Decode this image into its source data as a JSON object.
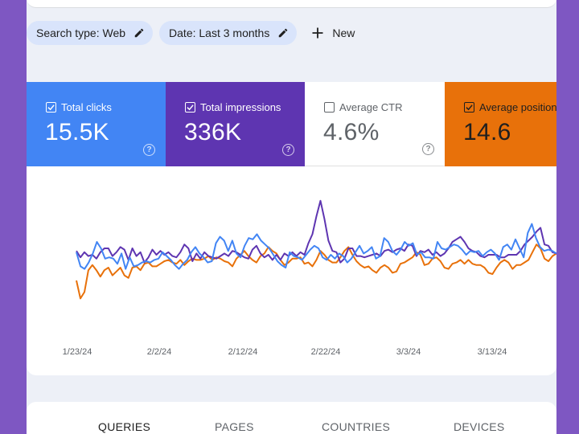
{
  "filters": {
    "search_type": "Search type: Web",
    "date": "Date: Last 3 months",
    "new_label": "New"
  },
  "metrics": [
    {
      "key": "clicks",
      "label": "Total clicks",
      "value": "15.5K",
      "checked": true,
      "color": "#4285f4"
    },
    {
      "key": "impressions",
      "label": "Total impressions",
      "value": "336K",
      "checked": true,
      "color": "#5e35b1"
    },
    {
      "key": "ctr",
      "label": "Average CTR",
      "value": "4.6%",
      "checked": false,
      "color": "#ffffff"
    },
    {
      "key": "position",
      "label": "Average position",
      "value": "14.6",
      "checked": true,
      "color": "#e8710a"
    }
  ],
  "chart_data": {
    "type": "line",
    "x_tick_labels": [
      "1/23/24",
      "2/2/24",
      "2/12/24",
      "2/22/24",
      "3/3/24",
      "3/13/24"
    ],
    "y_range": [
      0,
      100
    ],
    "grid": false,
    "series": [
      {
        "name": "Total clicks",
        "color": "#4285f4",
        "values": [
          52,
          41,
          39,
          44,
          51,
          60,
          55,
          47,
          48,
          47,
          43,
          51,
          39,
          48,
          41,
          42,
          44,
          45,
          44,
          46,
          47,
          52,
          49,
          46,
          42,
          39,
          43,
          46,
          52,
          56,
          51,
          48,
          44,
          45,
          59,
          64,
          61,
          53,
          61,
          51,
          48,
          57,
          63,
          62,
          66,
          61,
          58,
          55,
          50,
          45,
          42,
          40,
          52,
          49,
          48,
          46,
          50,
          54,
          57,
          55,
          48,
          46,
          50,
          47,
          51,
          49,
          44,
          47,
          52,
          57,
          51,
          53,
          56,
          47,
          49,
          63,
          60,
          53,
          50,
          54,
          60,
          57,
          59,
          50,
          52,
          48,
          48,
          47,
          60,
          55,
          54,
          56,
          58,
          57,
          54,
          50,
          53,
          52,
          53,
          49,
          52,
          54,
          51,
          46,
          56,
          58,
          54,
          62,
          55,
          48,
          67,
          74,
          63,
          56,
          53,
          54,
          53,
          51
        ]
      },
      {
        "name": "Total impressions",
        "color": "#5e35b1",
        "values": [
          53,
          48,
          52,
          49,
          50,
          47,
          52,
          55,
          55,
          49,
          52,
          56,
          54,
          46,
          55,
          49,
          52,
          44,
          48,
          54,
          50,
          53,
          50,
          52,
          49,
          48,
          52,
          58,
          55,
          45,
          51,
          47,
          52,
          49,
          48,
          47,
          49,
          51,
          49,
          53,
          52,
          50,
          48,
          47,
          54,
          57,
          51,
          48,
          50,
          46,
          50,
          46,
          51,
          49,
          52,
          49,
          52,
          50,
          59,
          66,
          80,
          92,
          78,
          61,
          53,
          52,
          44,
          47,
          55,
          55,
          49,
          49,
          48,
          49,
          50,
          51,
          49,
          53,
          54,
          52,
          54,
          55,
          53,
          58,
          57,
          49,
          53,
          52,
          54,
          50,
          52,
          49,
          51,
          55,
          60,
          62,
          64,
          60,
          55,
          53,
          52,
          49,
          48,
          50,
          50,
          50,
          48,
          48,
          50,
          50,
          50,
          53,
          58,
          61,
          64,
          68,
          71,
          58,
          57,
          52,
          51
        ]
      },
      {
        "name": "Average position",
        "color": "#e8710a",
        "values": [
          30,
          16,
          21,
          38,
          42,
          38,
          33,
          38,
          40,
          34,
          37,
          40,
          34,
          32,
          40,
          41,
          38,
          43,
          44,
          41,
          41,
          43,
          45,
          46,
          44,
          43,
          46,
          42,
          45,
          47,
          46,
          46,
          47,
          49,
          46,
          48,
          47,
          45,
          44,
          41,
          47,
          50,
          53,
          49,
          46,
          44,
          49,
          51,
          56,
          53,
          51,
          46,
          42,
          44,
          47,
          47,
          48,
          43,
          44,
          41,
          46,
          53,
          50,
          46,
          44,
          44,
          48,
          53,
          56,
          50,
          45,
          42,
          40,
          41,
          38,
          36,
          40,
          42,
          40,
          36,
          37,
          43,
          44,
          46,
          48,
          52,
          50,
          42,
          43,
          47,
          48,
          45,
          40,
          39,
          43,
          44,
          46,
          43,
          46,
          43,
          42,
          42,
          40,
          36,
          35,
          40,
          44,
          46,
          44,
          39,
          42,
          42,
          44,
          46,
          52,
          58,
          55,
          47,
          45,
          49,
          51
        ]
      }
    ]
  },
  "tabs": [
    "QUERIES",
    "PAGES",
    "COUNTRIES",
    "DEVICES"
  ]
}
